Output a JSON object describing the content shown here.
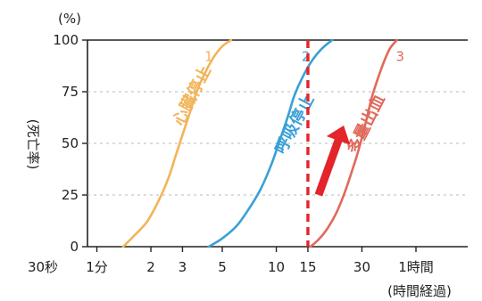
{
  "chart_data": {
    "type": "line",
    "ylabel": "(死亡率)",
    "ylabel_unit": "(%)",
    "xlabel": "(時間経過)",
    "ylim": [
      0,
      100
    ],
    "y_ticks": [
      "0",
      "25",
      "50",
      "75",
      "100"
    ],
    "x_ticks": [
      {
        "label": "30秒",
        "minutes": 0.5
      },
      {
        "label": "1分",
        "minutes": 1
      },
      {
        "label": "2",
        "minutes": 2
      },
      {
        "label": "3",
        "minutes": 3
      },
      {
        "label": "5",
        "minutes": 5
      },
      {
        "label": "10",
        "minutes": 10
      },
      {
        "label": "15",
        "minutes": 15
      },
      {
        "label": "30",
        "minutes": 30
      },
      {
        "label": "1時間",
        "minutes": 60
      }
    ],
    "x_scale": "log",
    "xlim": [
      0.5,
      105
    ],
    "grid": {
      "y": "dashed",
      "x": "none"
    },
    "series": [
      {
        "name": "心臓停止",
        "number": "1",
        "color": "#f2b45a",
        "points": [
          [
            1.4,
            0
          ],
          [
            1.6,
            5
          ],
          [
            1.9,
            12
          ],
          [
            2.2,
            22
          ],
          [
            2.5,
            33
          ],
          [
            2.75,
            44
          ],
          [
            3.0,
            54
          ],
          [
            3.3,
            65
          ],
          [
            3.6,
            75
          ],
          [
            4.0,
            84
          ],
          [
            4.5,
            92
          ],
          [
            5.0,
            97
          ],
          [
            5.6,
            100
          ]
        ]
      },
      {
        "name": "呼吸停止",
        "number": "2",
        "color": "#3aa0d6",
        "points": [
          [
            4.2,
            0
          ],
          [
            5.0,
            4
          ],
          [
            6.0,
            10
          ],
          [
            7.0,
            18
          ],
          [
            8.2,
            28
          ],
          [
            9.4,
            40
          ],
          [
            10.5,
            52
          ],
          [
            11.6,
            63
          ],
          [
            12.6,
            73
          ],
          [
            14.0,
            82
          ],
          [
            15.8,
            90
          ],
          [
            18.0,
            96
          ],
          [
            20.5,
            100
          ]
        ]
      },
      {
        "name": "多量出血",
        "number": "3",
        "color": "#e06a5c",
        "points": [
          [
            15.5,
            0
          ],
          [
            17.0,
            3
          ],
          [
            19.0,
            8
          ],
          [
            21.5,
            16
          ],
          [
            24.0,
            26
          ],
          [
            26.5,
            37
          ],
          [
            29.0,
            48
          ],
          [
            31.5,
            60
          ],
          [
            34.0,
            72
          ],
          [
            37.0,
            82
          ],
          [
            40.0,
            90
          ],
          [
            43.0,
            96
          ],
          [
            47.0,
            100
          ]
        ]
      }
    ],
    "annotations": [
      {
        "type": "vertical-dashed-line",
        "x_minutes": 15,
        "color": "#e3242b"
      },
      {
        "type": "arrow",
        "color": "#e3242b",
        "direction": "up-right"
      }
    ]
  }
}
